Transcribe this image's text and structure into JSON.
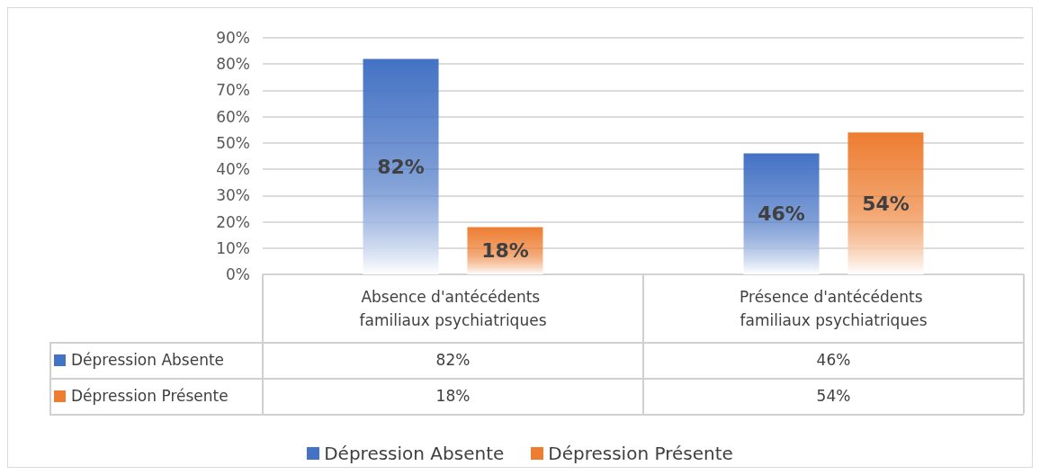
{
  "chart_data": {
    "type": "bar",
    "categories": [
      "Absence d'antécédents familiaux psychiatriques",
      "Présence d'antécédents familiaux psychiatriques"
    ],
    "series": [
      {
        "name": "Dépression Absente",
        "color": "#4472c4",
        "values": [
          82,
          46
        ],
        "value_labels": [
          "82%",
          "46%"
        ]
      },
      {
        "name": "Dépression Présente",
        "color": "#ed7d31",
        "values": [
          18,
          54
        ],
        "value_labels": [
          "18%",
          "54%"
        ]
      }
    ],
    "ylim": [
      0,
      90
    ],
    "yticks": [
      {
        "value": 0,
        "label": "0%"
      },
      {
        "value": 10,
        "label": "10%"
      },
      {
        "value": 20,
        "label": "20%"
      },
      {
        "value": 30,
        "label": "30%"
      },
      {
        "value": 40,
        "label": "40%"
      },
      {
        "value": 50,
        "label": "50%"
      },
      {
        "value": 60,
        "label": "60%"
      },
      {
        "value": 70,
        "label": "70%"
      },
      {
        "value": 80,
        "label": "80%"
      },
      {
        "value": 90,
        "label": "90%"
      }
    ],
    "grid": "y",
    "legend": "bottom"
  }
}
